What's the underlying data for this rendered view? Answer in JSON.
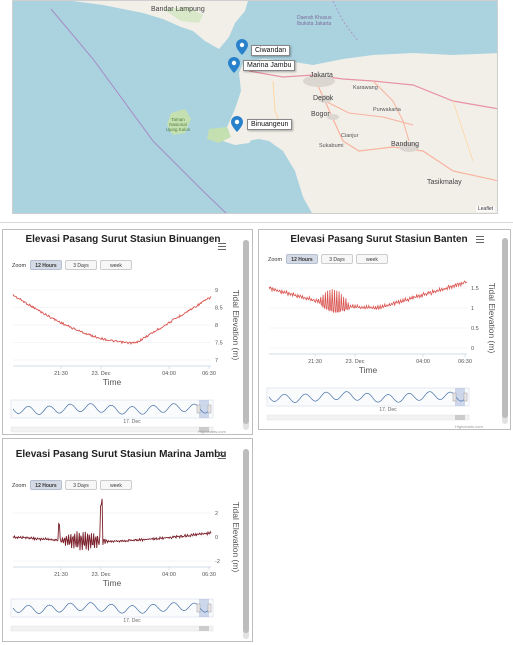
{
  "map": {
    "labels": {
      "bandar_lampung": "Bandar Lampung",
      "jakarta": "Jakarta",
      "depok": "Depok",
      "bogor": "Bogor",
      "karawang": "Karawang",
      "purwakarta": "Purwakarta",
      "cianjur": "Cianjur",
      "sukabumi": "Sukabumi",
      "bandung": "Bandung",
      "tasikmalaya": "Tasikmalay",
      "daerah_khusus": "Daerah Khusus Ibukota Jakarta",
      "taman_nasional": "Taman Nasional Ujung Kulon"
    },
    "markers": {
      "ciwandan": "Ciwandan",
      "marina_jambu": "Marina Jambu",
      "binuangeun": "Binuangeun"
    },
    "attribution": "Leaflet"
  },
  "charts": [
    {
      "title": "Elevasi Pasang Surut Stasiun Binuangen",
      "zoom_label": "Zoom",
      "zoom_buttons": [
        "12 Hours",
        "3 Days",
        "week"
      ],
      "ylabel": "Tidal Elevation (m)",
      "xlabel": "Time",
      "yticks": [
        "9",
        "8.5",
        "8",
        "7.5",
        "7"
      ],
      "xticks": [
        "21:30",
        "23. Dec",
        "04:00",
        "06:30"
      ],
      "navigator_label": "17. Dec",
      "credits": "Highcharts.com"
    },
    {
      "title": "Elevasi Pasang Surut Stasiun Banten",
      "zoom_label": "Zoom",
      "zoom_buttons": [
        "12 Hours",
        "3 Days",
        "week"
      ],
      "ylabel": "Tidal Elevation (m)",
      "xlabel": "Time",
      "yticks": [
        "1.5",
        "1",
        "0.5",
        "0"
      ],
      "xticks": [
        "21:30",
        "23. Dec",
        "04:00",
        "06:30"
      ],
      "navigator_label": "17. Dec",
      "credits": "Highcharts.com"
    },
    {
      "title": "Elevasi Pasang Surut Stasiun Marina Jambu",
      "zoom_label": "Zoom",
      "zoom_buttons": [
        "12 Hours",
        "3 Days",
        "week"
      ],
      "ylabel": "Tidal Elevation (m)",
      "xlabel": "Time",
      "yticks": [
        "2",
        "0",
        "-2"
      ],
      "xticks": [
        "21:30",
        "23. Dec",
        "04:00",
        "06:30"
      ],
      "navigator_label": "17. Dec",
      "credits": "Highcharts.com"
    }
  ],
  "colors": {
    "series": "#d9534f",
    "series_dark": "#7a1f2a",
    "navigator": "#4572a7",
    "sea": "#aad3df",
    "land": "#f2efe9"
  }
}
